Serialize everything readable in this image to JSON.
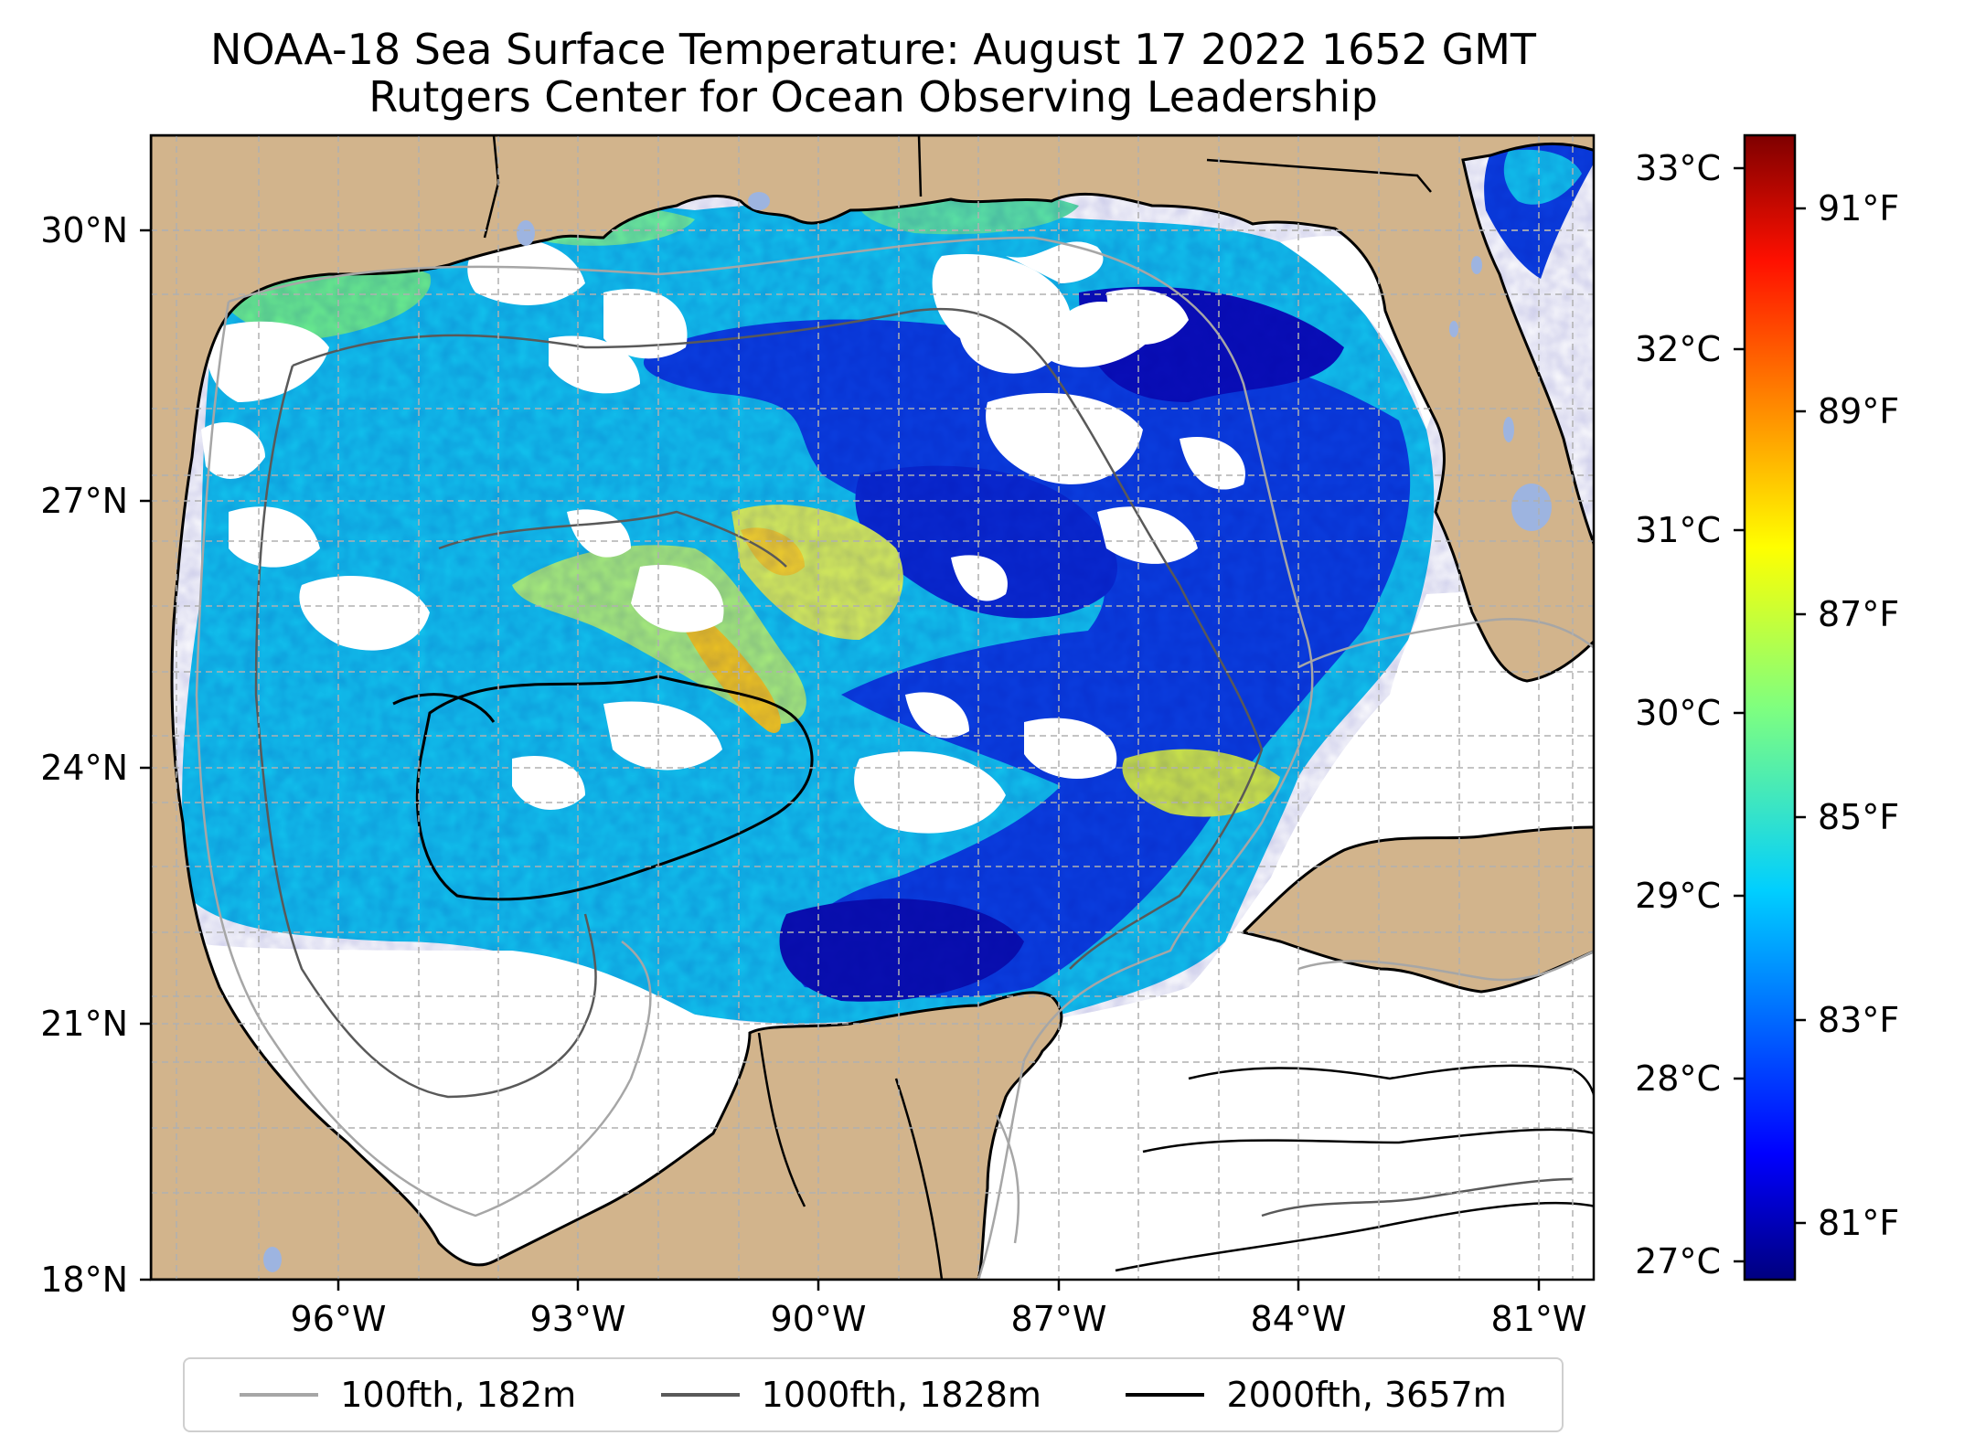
{
  "header": {
    "title_line1": "NOAA-18 Sea Surface Temperature: August 17 2022 1652 GMT",
    "title_line2": "Rutgers Center for Ocean Observing Leadership"
  },
  "map": {
    "lat_labels": [
      "30°N",
      "27°N",
      "24°N",
      "21°N",
      "18°N"
    ],
    "lon_labels": [
      "96°W",
      "93°W",
      "90°W",
      "87°W",
      "84°W",
      "81°W"
    ],
    "extent": {
      "lon_min": -98.3,
      "lon_max": -80.3,
      "lat_min": 18,
      "lat_max": 31.1
    },
    "colors": {
      "land": "#d2b48c",
      "lakes": "#9db4e0",
      "no_data": "#ffffff",
      "grid": "#b0b0b0"
    }
  },
  "colorbar": {
    "celsius_labels": [
      "33°C",
      "32°C",
      "31°C",
      "30°C",
      "29°C",
      "28°C",
      "27°C"
    ],
    "fahrenheit_labels": [
      "91°F",
      "89°F",
      "87°F",
      "85°F",
      "83°F",
      "81°F"
    ],
    "range_c": [
      26.9,
      33.2
    ],
    "colormap": "jet"
  },
  "legend": {
    "items": [
      {
        "label": "100fth, 182m",
        "color": "#a6a6a6"
      },
      {
        "label": "1000fth, 1828m",
        "color": "#595959"
      },
      {
        "label": "2000fth, 3657m",
        "color": "#000000"
      }
    ]
  }
}
